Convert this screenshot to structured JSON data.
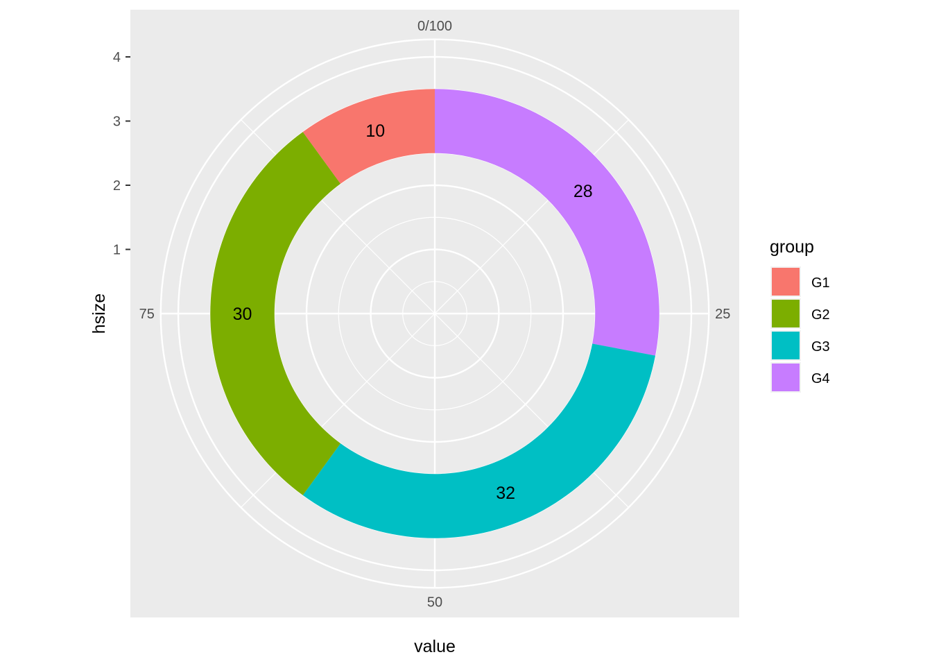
{
  "chart_data": {
    "type": "pie",
    "subtype": "donut (polar bar)",
    "series": [
      {
        "name": "G4",
        "value": 28,
        "color": "#C77CFF"
      },
      {
        "name": "G3",
        "value": 32,
        "color": "#00BFC4"
      },
      {
        "name": "G2",
        "value": 30,
        "color": "#7CAE00"
      },
      {
        "name": "G1",
        "value": 10,
        "color": "#F8766D"
      }
    ],
    "xlabel": "value",
    "ylabel": "hsize",
    "theta_ticks": [
      "0/100",
      "25",
      "50",
      "75"
    ],
    "theta_tick_values": [
      0,
      25,
      50,
      75
    ],
    "theta_range": [
      0,
      100
    ],
    "r_ticks": [
      "1",
      "2",
      "3",
      "4"
    ],
    "r_tick_values": [
      1,
      2,
      3,
      4
    ],
    "ring_r_range": [
      2.5,
      3.5
    ],
    "r_lim": [
      0,
      4.5
    ],
    "legend": {
      "title": "group",
      "placement": "right",
      "items": [
        {
          "label": "G1",
          "color": "#F8766D"
        },
        {
          "label": "G2",
          "color": "#7CAE00"
        },
        {
          "label": "G3",
          "color": "#00BFC4"
        },
        {
          "label": "G4",
          "color": "#C77CFF"
        }
      ]
    },
    "grid": true,
    "panel_background": "#EBEBEB",
    "grid_color": "#FFFFFF"
  }
}
